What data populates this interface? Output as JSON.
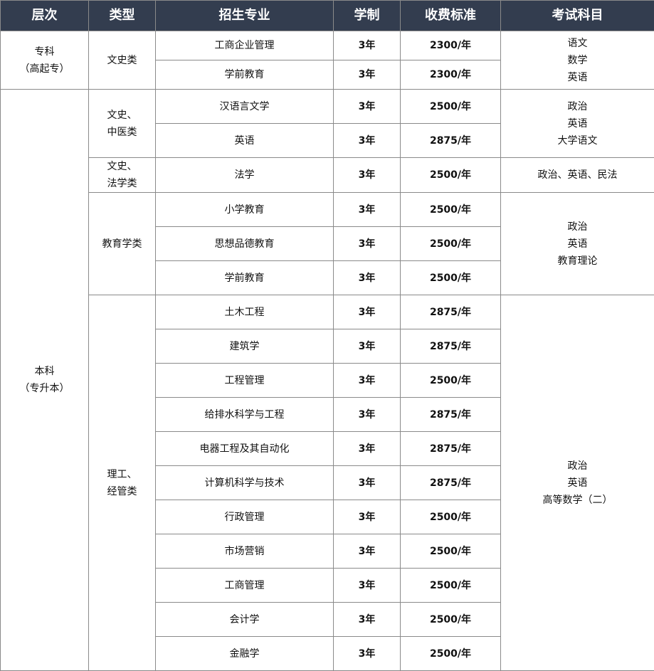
{
  "headers": [
    "层次",
    "类型",
    "招生专业",
    "学制",
    "收费标准",
    "考试科目"
  ],
  "colors": {
    "header_bg": "#333d4f",
    "header_text": "#ffffff",
    "border": "#8a8a8a"
  },
  "levels": [
    {
      "name": [
        "专科",
        "（高起专）"
      ]
    },
    {
      "name": [
        "本科",
        "（专升本）"
      ]
    }
  ],
  "groups": [
    {
      "type": [
        "文史类"
      ],
      "exam": [
        "语文",
        "数学",
        "英语"
      ]
    },
    {
      "type": [
        "文史、",
        "中医类"
      ],
      "exam": [
        "政治",
        "英语",
        "大学语文"
      ]
    },
    {
      "type": [
        "文史、",
        "法学类"
      ],
      "exam": [
        "政治、英语、民法"
      ]
    },
    {
      "type": [
        "教育学类"
      ],
      "exam": [
        "政治",
        "英语",
        "教育理论"
      ]
    },
    {
      "type": [
        "理工、",
        "经管类"
      ],
      "exam": [
        "政治",
        "英语",
        "高等数学（二）"
      ]
    }
  ],
  "rows": [
    {
      "major": "工商企业管理",
      "years": "3年",
      "fee": "2300/年"
    },
    {
      "major": "学前教育",
      "years": "3年",
      "fee": "2300/年"
    },
    {
      "major": "汉语言文学",
      "years": "3年",
      "fee": "2500/年"
    },
    {
      "major": "英语",
      "years": "3年",
      "fee": "2875/年"
    },
    {
      "major": "法学",
      "years": "3年",
      "fee": "2500/年"
    },
    {
      "major": "小学教育",
      "years": "3年",
      "fee": "2500/年"
    },
    {
      "major": "思想品德教育",
      "years": "3年",
      "fee": "2500/年"
    },
    {
      "major": "学前教育",
      "years": "3年",
      "fee": "2500/年"
    },
    {
      "major": "土木工程",
      "years": "3年",
      "fee": "2875/年"
    },
    {
      "major": "建筑学",
      "years": "3年",
      "fee": "2875/年"
    },
    {
      "major": "工程管理",
      "years": "3年",
      "fee": "2500/年"
    },
    {
      "major": "给排水科学与工程",
      "years": "3年",
      "fee": "2875/年"
    },
    {
      "major": "电器工程及其自动化",
      "years": "3年",
      "fee": "2875/年"
    },
    {
      "major": "计算机科学与技术",
      "years": "3年",
      "fee": "2875/年"
    },
    {
      "major": "行政管理",
      "years": "3年",
      "fee": "2500/年"
    },
    {
      "major": "市场营销",
      "years": "3年",
      "fee": "2500/年"
    },
    {
      "major": "工商管理",
      "years": "3年",
      "fee": "2500/年"
    },
    {
      "major": "会计学",
      "years": "3年",
      "fee": "2500/年"
    },
    {
      "major": "金融学",
      "years": "3年",
      "fee": "2500/年"
    }
  ]
}
